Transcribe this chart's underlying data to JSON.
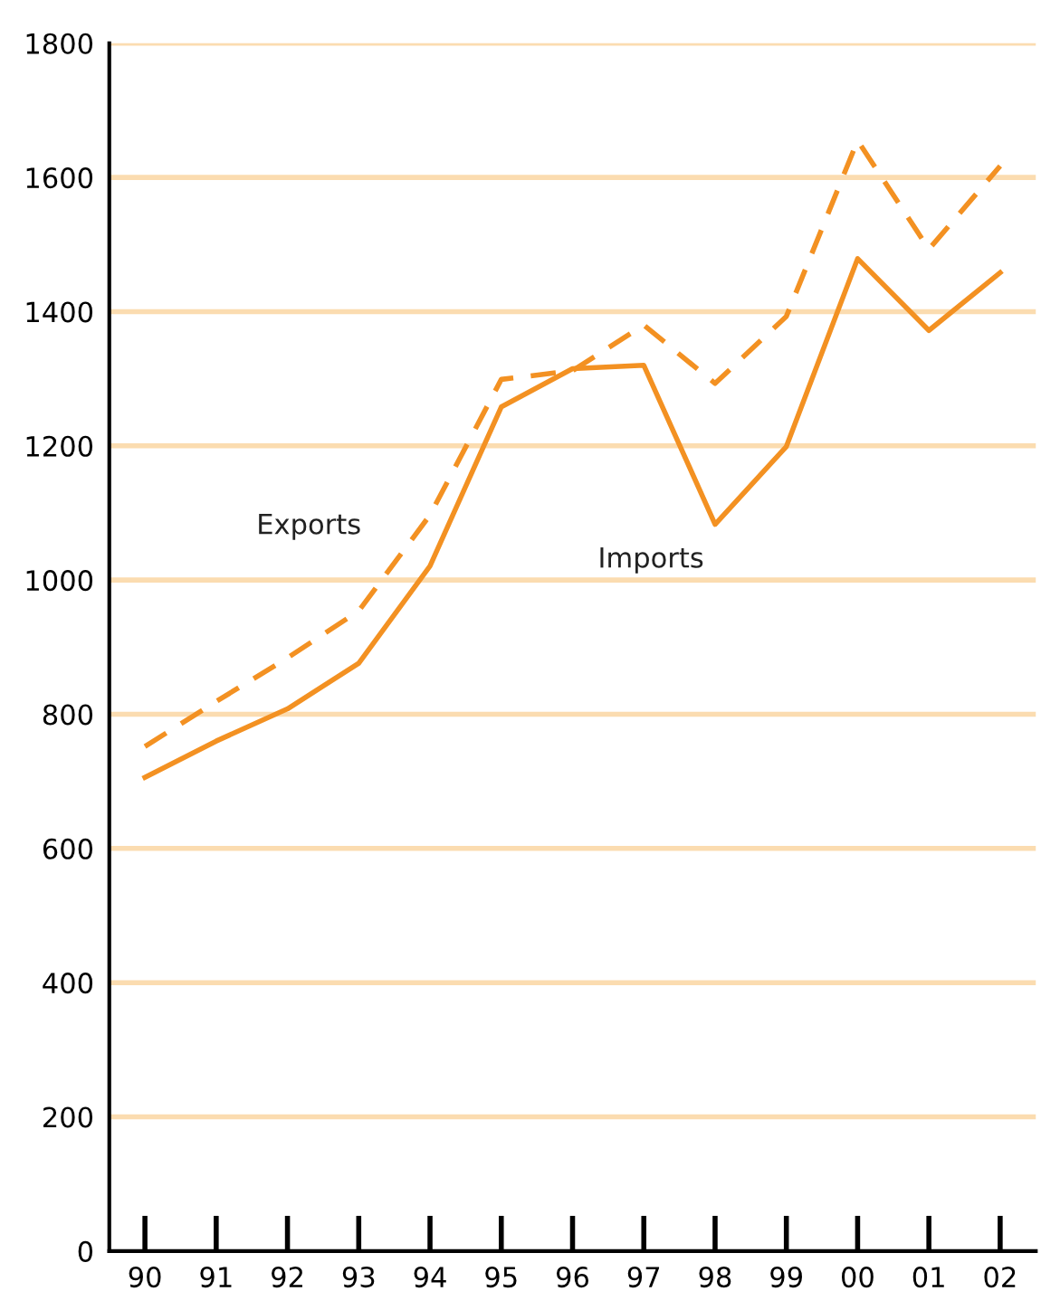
{
  "chart_data": {
    "type": "line",
    "categories": [
      "90",
      "91",
      "92",
      "93",
      "94",
      "95",
      "96",
      "97",
      "98",
      "99",
      "00",
      "01",
      "02"
    ],
    "series": [
      {
        "name": "Exports",
        "color": "#f39122",
        "line_style": "dashed",
        "values": [
          752,
          819,
          884,
          954,
          1097,
          1299,
          1312,
          1380,
          1293,
          1393,
          1655,
          1493,
          1617
        ]
      },
      {
        "name": "Imports",
        "color": "#f39122",
        "line_style": "solid",
        "values": [
          706,
          760,
          808,
          876,
          1021,
          1258,
          1315,
          1320,
          1083,
          1199,
          1479,
          1372,
          1458
        ]
      }
    ],
    "ylim": [
      0,
      1800
    ],
    "yticks": [
      0,
      200,
      400,
      600,
      800,
      1000,
      1200,
      1400,
      1600,
      1800
    ],
    "grid": "y",
    "legend": false,
    "marker": "none"
  }
}
